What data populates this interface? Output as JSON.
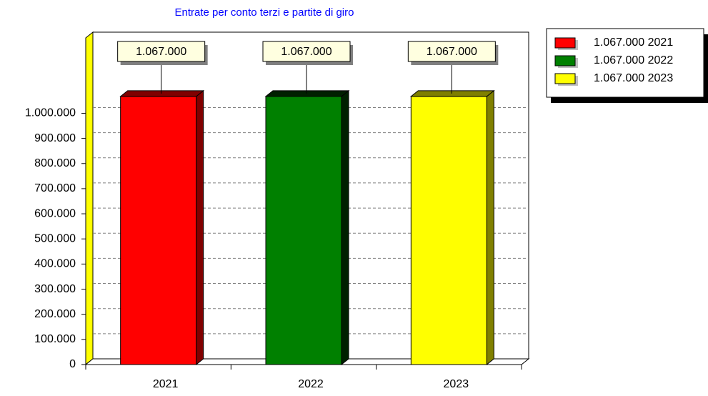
{
  "chart_data": {
    "type": "bar3d",
    "title": "Entrate per conto terzi e partite di giro",
    "categories": [
      "2021",
      "2022",
      "2023"
    ],
    "values": [
      1067000,
      1067000,
      1067000
    ],
    "value_labels": [
      "1.067.000",
      "1.067.000",
      "1.067.000"
    ],
    "colors": [
      "#ff0000",
      "#008000",
      "#ffff00"
    ],
    "side_colors": [
      "#800000",
      "#002000",
      "#808000"
    ],
    "legend": [
      "1.067.000 2021",
      "1.067.000 2022",
      "1.067.000 2023"
    ],
    "legend_position": "right",
    "ylim": [
      0,
      1300000
    ],
    "yticks": [
      0,
      {
        "value": 100000,
        "label": "100.000"
      },
      {
        "value": 200000,
        "label": "200.000"
      },
      {
        "value": 300000,
        "label": "300.000"
      },
      {
        "value": 400000,
        "label": "400.000"
      },
      {
        "value": 500000,
        "label": "500.000"
      },
      {
        "value": 600000,
        "label": "600.000"
      },
      {
        "value": 700000,
        "label": "700.000"
      },
      {
        "value": 800000,
        "label": "800.000"
      },
      {
        "value": 900000,
        "label": "900.000"
      },
      {
        "value": 1000000,
        "label": "1.000.000"
      }
    ],
    "grid": true
  }
}
